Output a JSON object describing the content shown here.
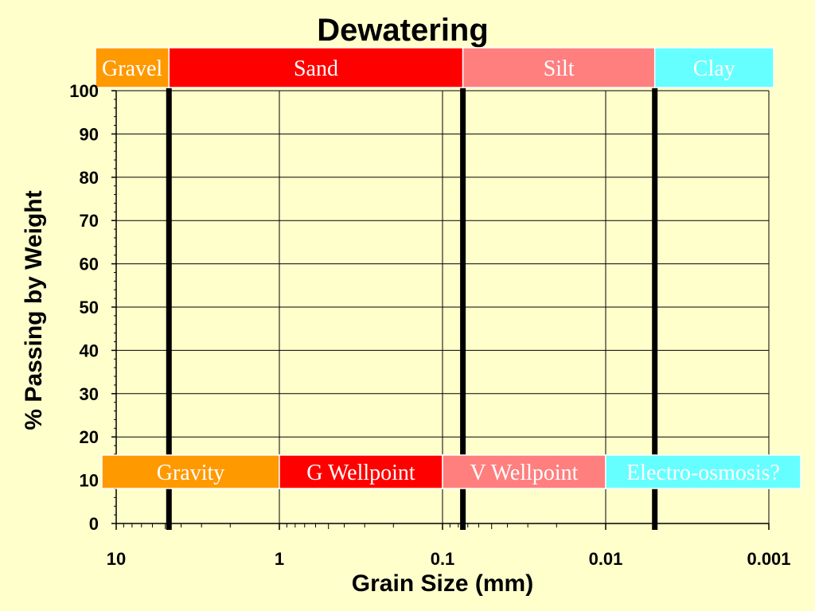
{
  "chart_data": {
    "type": "area",
    "title": "Dewatering",
    "xlabel": "Grain Size (mm)",
    "ylabel": "% Passing by Weight",
    "x_scale": "log",
    "x_reversed": true,
    "xlim": [
      10,
      0.001
    ],
    "ylim": [
      0,
      100
    ],
    "x_ticks": [
      {
        "value": 10,
        "label": "10"
      },
      {
        "value": 1,
        "label": "1"
      },
      {
        "value": 0.1,
        "label": "0.1"
      },
      {
        "value": 0.01,
        "label": "0.01"
      },
      {
        "value": 0.001,
        "label": "0.001"
      }
    ],
    "y_ticks": [
      {
        "value": 0,
        "label": "0"
      },
      {
        "value": 10,
        "label": "10"
      },
      {
        "value": 20,
        "label": "20"
      },
      {
        "value": 30,
        "label": "30"
      },
      {
        "value": 40,
        "label": "40"
      },
      {
        "value": 50,
        "label": "50"
      },
      {
        "value": 60,
        "label": "60"
      },
      {
        "value": 70,
        "label": "70"
      },
      {
        "value": 80,
        "label": "80"
      },
      {
        "value": 90,
        "label": "90"
      },
      {
        "value": 100,
        "label": "100"
      }
    ],
    "grid": true,
    "boundaries": [
      4.75,
      0.075,
      0.005
    ],
    "soil_bands": [
      {
        "label": "Gravel",
        "from": 10,
        "to": 4.75,
        "color": "#ff9900"
      },
      {
        "label": "Sand",
        "from": 4.75,
        "to": 0.075,
        "color": "#ff0000"
      },
      {
        "label": "Silt",
        "from": 0.075,
        "to": 0.005,
        "color": "#ff7f7f"
      },
      {
        "label": "Clay",
        "from": 0.005,
        "to": 0.001,
        "color": "#66ffff"
      }
    ],
    "method_bands": [
      {
        "label": "Gravity",
        "from": 10,
        "to": 1,
        "color": "#ff9900"
      },
      {
        "label": "G Wellpoint",
        "from": 1,
        "to": 0.1,
        "color": "#ff0000"
      },
      {
        "label": "V Wellpoint",
        "from": 0.1,
        "to": 0.01,
        "color": "#ff7f7f"
      },
      {
        "label": "Electro-osmosis?",
        "from": 0.01,
        "to": 0.001,
        "color": "#66ffff"
      }
    ]
  },
  "colors": {
    "background": "#ffffcc",
    "grid": "#000000",
    "boundary_line": "#000000"
  }
}
